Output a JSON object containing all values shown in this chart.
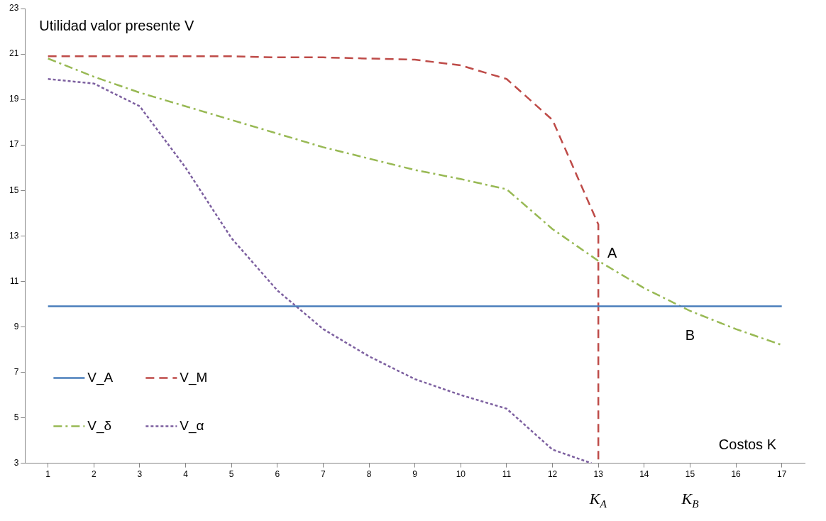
{
  "chart_data": {
    "type": "line",
    "xlabel": "Costos K",
    "ylabel": "Utilidad valor presente V",
    "x": [
      1,
      2,
      3,
      4,
      5,
      6,
      7,
      8,
      9,
      10,
      11,
      12,
      13,
      14,
      15,
      16,
      17
    ],
    "xlim": [
      0.5,
      17.5
    ],
    "xticks": [
      1,
      2,
      3,
      4,
      5,
      6,
      7,
      8,
      9,
      10,
      11,
      12,
      13,
      14,
      15,
      16,
      17
    ],
    "ylim": [
      3,
      23
    ],
    "yticks": [
      3,
      5,
      7,
      9,
      11,
      13,
      15,
      17,
      19,
      21,
      23
    ],
    "grid": false,
    "legend": "bottom left",
    "marker": "none",
    "series": [
      {
        "name": "V_A",
        "color": "#4a7ebb",
        "line_style": "solid",
        "values": [
          9.9,
          9.9,
          9.9,
          9.9,
          9.9,
          9.9,
          9.9,
          9.9,
          9.9,
          9.9,
          9.9,
          9.9,
          9.9,
          9.9,
          9.9,
          9.9,
          9.9
        ]
      },
      {
        "name": "V_M",
        "color": "#be4b48",
        "line_style": "dashed",
        "x": [
          1,
          2,
          3,
          4,
          5,
          6,
          7,
          8,
          9,
          10,
          11,
          12,
          13,
          13
        ],
        "values": [
          20.9,
          20.9,
          20.9,
          20.9,
          20.9,
          20.85,
          20.85,
          20.8,
          20.75,
          20.5,
          19.9,
          18.1,
          13.5,
          3
        ]
      },
      {
        "name": "V_δ",
        "color": "#98b954",
        "line_style": "dashdot",
        "values": [
          20.8,
          20.0,
          19.3,
          18.7,
          18.1,
          17.5,
          16.9,
          16.4,
          15.9,
          15.5,
          15.05,
          13.3,
          11.9,
          10.7,
          9.7,
          8.9,
          8.2
        ]
      },
      {
        "name": "V_α",
        "color": "#7d60a0",
        "line_style": "dotted",
        "x": [
          1,
          2,
          3,
          4,
          5,
          6,
          7,
          8,
          9,
          10,
          11,
          12,
          12.85
        ],
        "values": [
          19.9,
          19.7,
          18.7,
          16.0,
          12.9,
          10.6,
          8.9,
          7.7,
          6.7,
          6.0,
          5.4,
          3.6,
          3
        ]
      }
    ],
    "annotations": [
      "A",
      "B",
      "K$_{A}$",
      "K$_{B}$"
    ]
  }
}
